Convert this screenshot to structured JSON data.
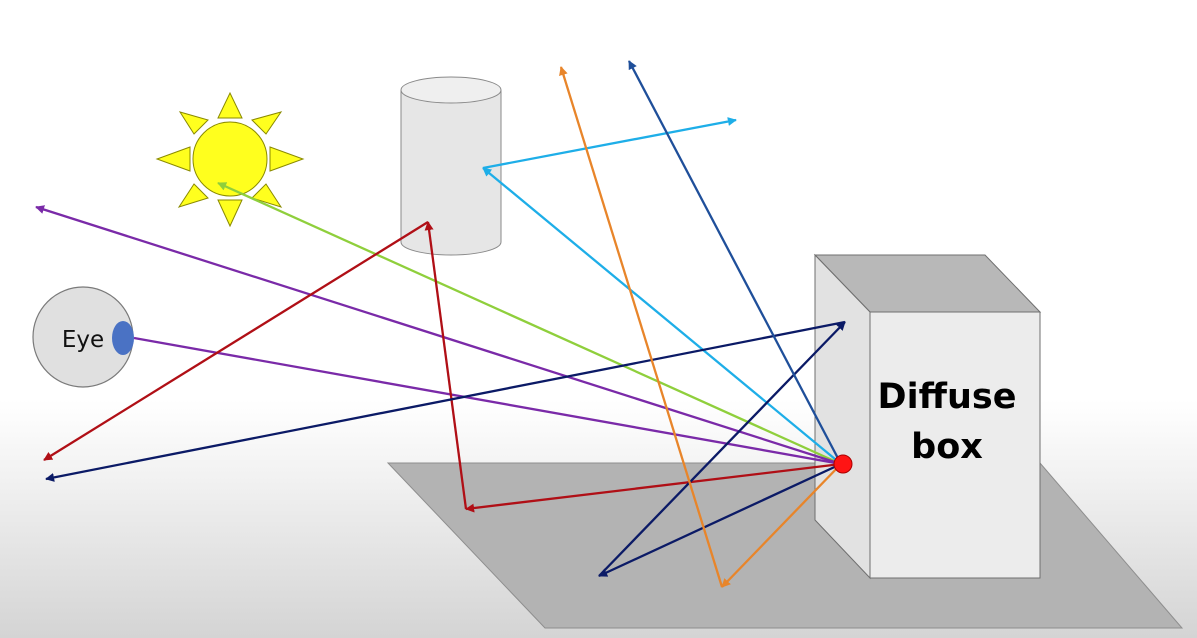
{
  "labels": {
    "eye": "Eye",
    "box_line1": "Diffuse",
    "box_line2": "box"
  },
  "colors": {
    "purple": "#7a2aa8",
    "green": "#8fcf3c",
    "cyan": "#1eaee8",
    "red": "#b00f16",
    "navy": "#0b1a66",
    "orange": "#e8852a",
    "steel_blue": "#1f4f9a",
    "hit_point": "#ff1414",
    "sun": "#ffff1e",
    "plane": "#b3b3b3",
    "box_face": "#ebebeb",
    "box_top": "#b8b8b8",
    "cylinder": "#e6e6e6",
    "eye_pupil": "#4a72c4"
  },
  "icons": {
    "sun": "sun-icon",
    "eye": "eye-icon",
    "cylinder": "cylinder-icon",
    "box": "cube-icon"
  }
}
